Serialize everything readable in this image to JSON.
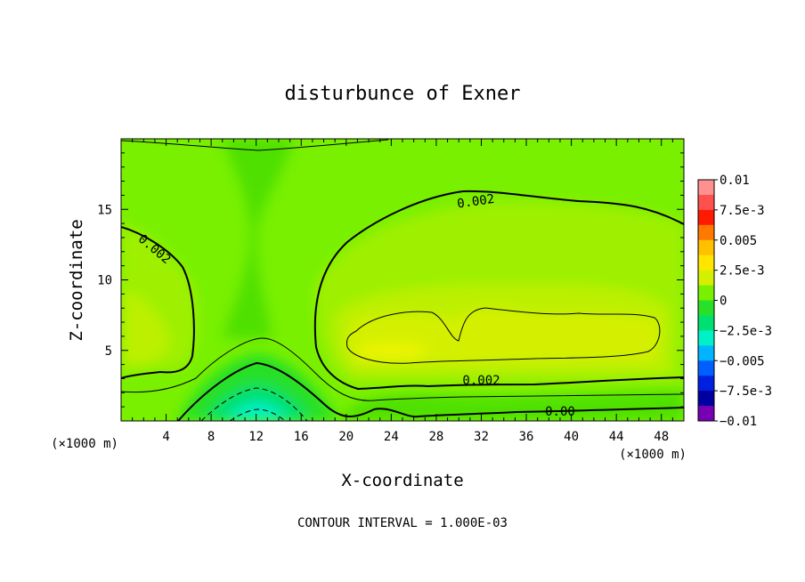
{
  "chart_data": {
    "type": "heatmap",
    "title": "disturbunce of Exner",
    "xlabel": "X-coordinate",
    "ylabel": "Z-coordinate",
    "x_unit_left": "(×1000 m)",
    "x_unit_right": "(×1000 m)",
    "footer": "CONTOUR INTERVAL = 1.000E-03",
    "xlim": [
      0,
      50
    ],
    "ylim": [
      0,
      20
    ],
    "x_ticks": [
      4,
      8,
      12,
      16,
      20,
      24,
      28,
      32,
      36,
      40,
      44,
      48
    ],
    "x_tick_labels": [
      "4",
      "8",
      "12",
      "16",
      "20",
      "24",
      "28",
      "32",
      "36",
      "40",
      "44",
      "48"
    ],
    "y_ticks": [
      5,
      10,
      15
    ],
    "y_tick_labels": [
      "5",
      "10",
      "15"
    ],
    "colorbar": {
      "labels": [
        "0.01",
        "7.5e-3",
        "0.005",
        "2.5e-3",
        "0",
        "−2.5e-3",
        "−0.005",
        "−7.5e-3",
        "−0.01"
      ],
      "colors": [
        "#ff9090",
        "#ff5050",
        "#ff1a00",
        "#ff7800",
        "#ffc000",
        "#ffe600",
        "#d4f000",
        "#78f000",
        "#28e028",
        "#00e070",
        "#00f0c8",
        "#00b4ff",
        "#0060ff",
        "#0020e0",
        "#0000a0",
        "#7800b4"
      ]
    },
    "contour_labels": [
      {
        "text": "0.002",
        "x": 31.5,
        "z": 15.6,
        "rot": -8
      },
      {
        "text": "0.002",
        "x": 3,
        "z": 12.2,
        "rot": 40
      },
      {
        "text": "0.002",
        "x": 32,
        "z": 2.9,
        "rot": 0
      },
      {
        "text": "0.00",
        "x": 39,
        "z": 0.7,
        "rot": 0
      }
    ]
  }
}
